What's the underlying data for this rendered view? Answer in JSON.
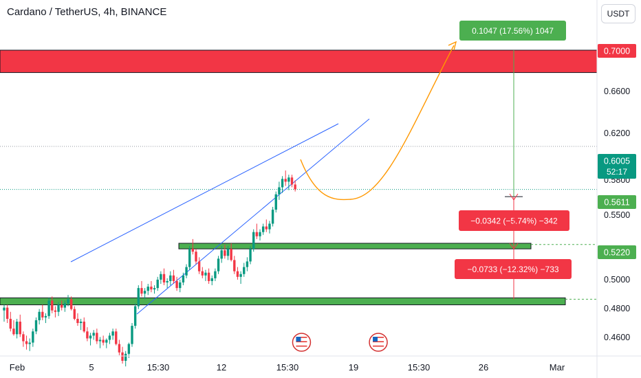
{
  "header": {
    "title": "Cardano / TetherUS, 4h, BINANCE",
    "currency": "USDT"
  },
  "chart_data": {
    "type": "candlestick",
    "x_ticks": [
      "Feb",
      "5",
      "15:30",
      "12",
      "15:30",
      "19",
      "15:30",
      "26",
      "Mar"
    ],
    "y_ticks": [
      "0.6600",
      "0.6200",
      "0.5800",
      "0.5500",
      "0.5000",
      "0.4800",
      "0.4600"
    ],
    "y_range": [
      0.45,
      0.725
    ],
    "price_tags": [
      {
        "value": 0.7,
        "label": "0.7000",
        "color": "#f23645"
      },
      {
        "value": 0.6005,
        "label": "0.6005",
        "sub": "52:17",
        "color": "#089981"
      },
      {
        "value": 0.5611,
        "label": "0.5611",
        "color": "#4caf50"
      },
      {
        "value": 0.522,
        "label": "0.5220",
        "color": "#4caf50"
      }
    ],
    "zones": [
      {
        "name": "resistance",
        "low": 0.684,
        "high": 0.7,
        "color": "#f23645"
      },
      {
        "name": "support-upper",
        "low": 0.558,
        "high": 0.562,
        "color": "#4caf50"
      },
      {
        "name": "support-lower",
        "low": 0.518,
        "high": 0.523,
        "color": "#4caf50"
      }
    ],
    "measures": [
      {
        "text": "0.1047 (17.56%) 1047",
        "color": "#4caf50",
        "from": 0.5953,
        "to": 0.7
      },
      {
        "text": "−0.0342 (−5.74%) −342",
        "color": "#f23645",
        "from": 0.5953,
        "to": 0.5611
      },
      {
        "text": "−0.0733 (−12.32%) −733",
        "color": "#f23645",
        "from": 0.5953,
        "to": 0.522
      }
    ],
    "candles": [
      [
        0.514,
        0.518,
        0.506,
        0.516
      ],
      [
        0.516,
        0.518,
        0.505,
        0.508
      ],
      [
        0.508,
        0.513,
        0.499,
        0.501
      ],
      [
        0.501,
        0.507,
        0.496,
        0.497
      ],
      [
        0.497,
        0.508,
        0.494,
        0.506
      ],
      [
        0.506,
        0.511,
        0.495,
        0.497
      ],
      [
        0.497,
        0.499,
        0.488,
        0.492
      ],
      [
        0.492,
        0.496,
        0.486,
        0.49
      ],
      [
        0.49,
        0.494,
        0.485,
        0.491
      ],
      [
        0.491,
        0.501,
        0.488,
        0.499
      ],
      [
        0.499,
        0.509,
        0.497,
        0.507
      ],
      [
        0.507,
        0.515,
        0.504,
        0.513
      ],
      [
        0.513,
        0.518,
        0.507,
        0.509
      ],
      [
        0.509,
        0.512,
        0.505,
        0.51
      ],
      [
        0.51,
        0.523,
        0.508,
        0.521
      ],
      [
        0.521,
        0.524,
        0.512,
        0.514
      ],
      [
        0.514,
        0.517,
        0.509,
        0.513
      ],
      [
        0.513,
        0.52,
        0.51,
        0.518
      ],
      [
        0.518,
        0.521,
        0.514,
        0.516
      ],
      [
        0.516,
        0.521,
        0.513,
        0.519
      ],
      [
        0.519,
        0.525,
        0.517,
        0.522
      ],
      [
        0.522,
        0.524,
        0.514,
        0.515
      ],
      [
        0.515,
        0.517,
        0.507,
        0.508
      ],
      [
        0.508,
        0.512,
        0.503,
        0.505
      ],
      [
        0.505,
        0.508,
        0.5,
        0.506
      ],
      [
        0.506,
        0.509,
        0.498,
        0.499
      ],
      [
        0.499,
        0.502,
        0.492,
        0.494
      ],
      [
        0.494,
        0.498,
        0.489,
        0.496
      ],
      [
        0.496,
        0.5,
        0.493,
        0.498
      ],
      [
        0.498,
        0.501,
        0.49,
        0.492
      ],
      [
        0.492,
        0.495,
        0.487,
        0.493
      ],
      [
        0.493,
        0.496,
        0.489,
        0.491
      ],
      [
        0.491,
        0.494,
        0.487,
        0.493
      ],
      [
        0.493,
        0.498,
        0.49,
        0.496
      ],
      [
        0.496,
        0.501,
        0.493,
        0.499
      ],
      [
        0.499,
        0.501,
        0.489,
        0.49
      ],
      [
        0.49,
        0.493,
        0.482,
        0.484
      ],
      [
        0.484,
        0.488,
        0.476,
        0.478
      ],
      [
        0.478,
        0.485,
        0.474,
        0.483
      ],
      [
        0.483,
        0.491,
        0.48,
        0.49
      ],
      [
        0.49,
        0.505,
        0.488,
        0.503
      ],
      [
        0.503,
        0.519,
        0.501,
        0.517
      ],
      [
        0.517,
        0.532,
        0.515,
        0.53
      ],
      [
        0.53,
        0.535,
        0.524,
        0.526
      ],
      [
        0.526,
        0.53,
        0.522,
        0.528
      ],
      [
        0.528,
        0.533,
        0.525,
        0.531
      ],
      [
        0.531,
        0.535,
        0.527,
        0.529
      ],
      [
        0.529,
        0.532,
        0.526,
        0.53
      ],
      [
        0.53,
        0.538,
        0.528,
        0.536
      ],
      [
        0.536,
        0.542,
        0.533,
        0.54
      ],
      [
        0.54,
        0.544,
        0.532,
        0.534
      ],
      [
        0.534,
        0.537,
        0.53,
        0.535
      ],
      [
        0.535,
        0.542,
        0.532,
        0.539
      ],
      [
        0.539,
        0.543,
        0.533,
        0.535
      ],
      [
        0.535,
        0.538,
        0.528,
        0.53
      ],
      [
        0.53,
        0.536,
        0.527,
        0.534
      ],
      [
        0.534,
        0.541,
        0.532,
        0.539
      ],
      [
        0.539,
        0.547,
        0.537,
        0.545
      ],
      [
        0.545,
        0.56,
        0.543,
        0.558
      ],
      [
        0.558,
        0.565,
        0.554,
        0.556
      ],
      [
        0.556,
        0.558,
        0.547,
        0.549
      ],
      [
        0.549,
        0.552,
        0.54,
        0.542
      ],
      [
        0.542,
        0.545,
        0.537,
        0.539
      ],
      [
        0.539,
        0.543,
        0.535,
        0.541
      ],
      [
        0.541,
        0.544,
        0.533,
        0.535
      ],
      [
        0.535,
        0.539,
        0.532,
        0.537
      ],
      [
        0.537,
        0.544,
        0.535,
        0.542
      ],
      [
        0.542,
        0.553,
        0.54,
        0.551
      ],
      [
        0.551,
        0.56,
        0.548,
        0.557
      ],
      [
        0.557,
        0.561,
        0.551,
        0.553
      ],
      [
        0.553,
        0.56,
        0.55,
        0.558
      ],
      [
        0.558,
        0.562,
        0.549,
        0.55
      ],
      [
        0.55,
        0.553,
        0.54,
        0.542
      ],
      [
        0.542,
        0.545,
        0.536,
        0.538
      ],
      [
        0.538,
        0.542,
        0.533,
        0.54
      ],
      [
        0.54,
        0.548,
        0.538,
        0.545
      ],
      [
        0.545,
        0.552,
        0.542,
        0.549
      ],
      [
        0.549,
        0.56,
        0.547,
        0.558
      ],
      [
        0.558,
        0.572,
        0.556,
        0.57
      ],
      [
        0.57,
        0.576,
        0.565,
        0.567
      ],
      [
        0.567,
        0.572,
        0.564,
        0.57
      ],
      [
        0.57,
        0.576,
        0.568,
        0.574
      ],
      [
        0.574,
        0.579,
        0.57,
        0.572
      ],
      [
        0.572,
        0.578,
        0.569,
        0.576
      ],
      [
        0.576,
        0.588,
        0.574,
        0.586
      ],
      [
        0.586,
        0.599,
        0.584,
        0.597
      ],
      [
        0.597,
        0.606,
        0.593,
        0.602
      ],
      [
        0.602,
        0.61,
        0.598,
        0.608
      ],
      [
        0.608,
        0.614,
        0.603,
        0.606
      ],
      [
        0.606,
        0.611,
        0.6,
        0.609
      ],
      [
        0.609,
        0.611,
        0.602,
        0.604
      ],
      [
        0.604,
        0.607,
        0.599,
        0.6005
      ]
    ]
  },
  "axis": {
    "x_labels": [
      "Feb",
      "5",
      "15:30",
      "12",
      "15:30",
      "19",
      "15:30",
      "26",
      "Mar"
    ]
  },
  "colors": {
    "up": "#089981",
    "down": "#f23645",
    "trendline": "#2962ff",
    "projection": "#ff9800",
    "measure_up": "#4caf50",
    "measure_down": "#f23645"
  },
  "events": [
    {
      "icon": "us-flag-icon",
      "index": 93
    },
    {
      "icon": "us-flag-icon",
      "index": 117
    }
  ]
}
